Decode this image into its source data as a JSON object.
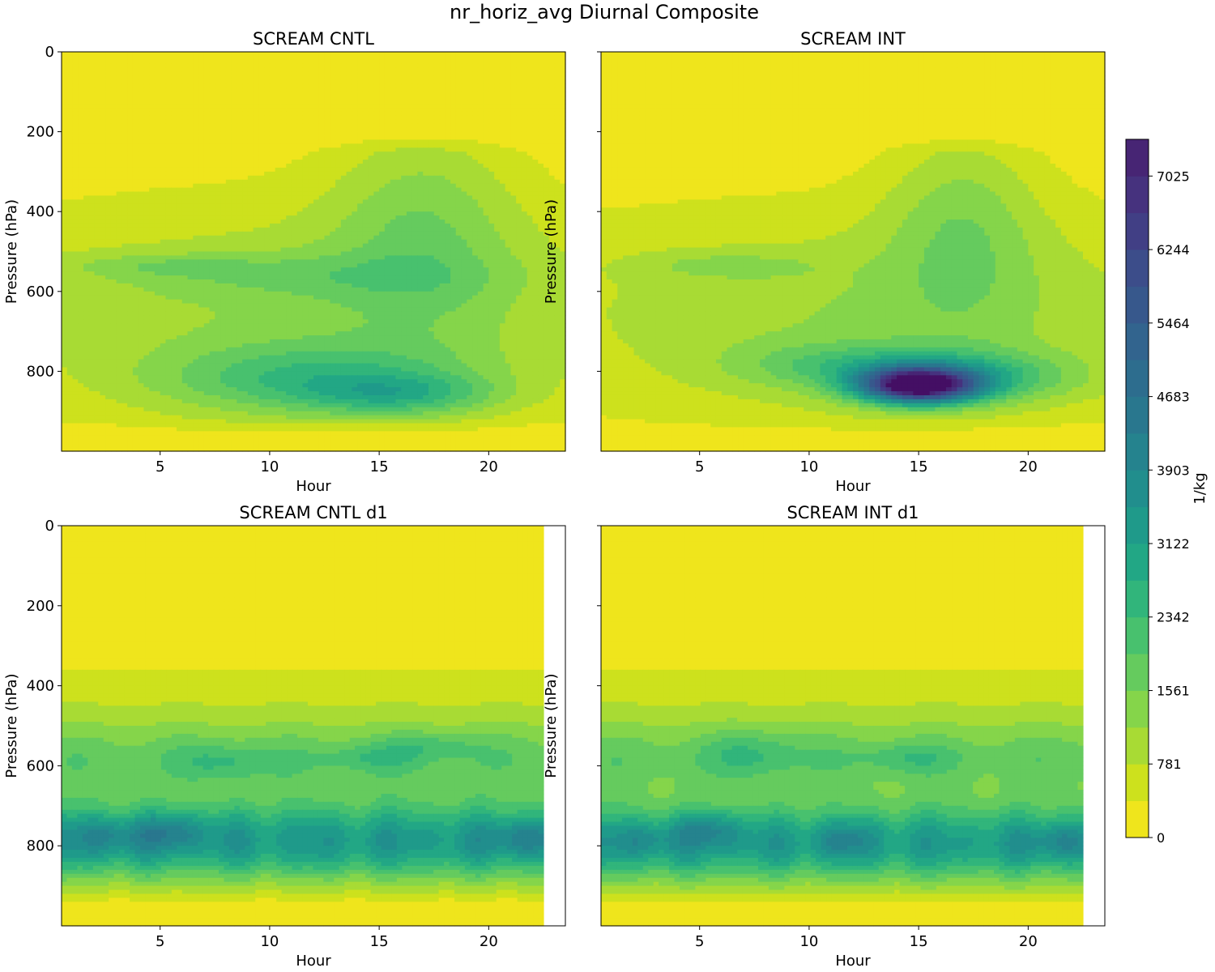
{
  "figure": {
    "title": "nr_horiz_avg Diurnal Composite"
  },
  "colors": {
    "levels": [
      "#efe51c",
      "#cde11d",
      "#a8db34",
      "#85d54a",
      "#65cb5e",
      "#48c16e",
      "#31b57b",
      "#22a785",
      "#1f9a8a",
      "#218e8d",
      "#25838e",
      "#29778e",
      "#2d6d8e",
      "#32648e",
      "#37588c",
      "#3c4d8a",
      "#413f85",
      "#46327e",
      "#472574",
      "#440f64"
    ]
  },
  "chart_data": [
    {
      "type": "contourf",
      "title": "SCREAM CNTL",
      "xlabel": "Hour",
      "ylabel": "Pressure (hPa)",
      "xlim": [
        0.5,
        23.5
      ],
      "ylim": [
        1000,
        0
      ],
      "xticks": [
        5,
        10,
        15,
        20
      ],
      "yticks": [
        0,
        200,
        400,
        600,
        800
      ],
      "show_yticklabels": true,
      "blobs": [
        {
          "x": 12,
          "y": 700,
          "sx": 9,
          "sy": 230,
          "v": 700
        },
        {
          "x": 12,
          "y": 820,
          "sx": 5,
          "sy": 60,
          "v": 1500
        },
        {
          "x": 16,
          "y": 860,
          "sx": 3,
          "sy": 35,
          "v": 1300
        },
        {
          "x": 17,
          "y": 420,
          "sx": 3,
          "sy": 200,
          "v": 1000
        },
        {
          "x": 11,
          "y": 560,
          "sx": 6,
          "sy": 40,
          "v": 600
        },
        {
          "x": 5,
          "y": 535,
          "sx": 3,
          "sy": 20,
          "v": 500
        }
      ]
    },
    {
      "type": "contourf",
      "title": "SCREAM INT",
      "xlabel": "Hour",
      "ylabel": "Pressure (hPa)",
      "xlim": [
        0.5,
        23.5
      ],
      "ylim": [
        1000,
        0
      ],
      "xticks": [
        5,
        10,
        15,
        20
      ],
      "yticks": [
        0,
        200,
        400,
        600,
        800
      ],
      "show_yticklabels": false,
      "blobs": [
        {
          "x": 13,
          "y": 720,
          "sx": 9,
          "sy": 210,
          "v": 700
        },
        {
          "x": 15,
          "y": 835,
          "sx": 1.8,
          "sy": 30,
          "v": 6800
        },
        {
          "x": 17,
          "y": 815,
          "sx": 3.5,
          "sy": 45,
          "v": 1800
        },
        {
          "x": 11.5,
          "y": 785,
          "sx": 3.5,
          "sy": 40,
          "v": 1000
        },
        {
          "x": 17,
          "y": 420,
          "sx": 2.5,
          "sy": 180,
          "v": 1000
        },
        {
          "x": 6,
          "y": 535,
          "sx": 3,
          "sy": 25,
          "v": 550
        }
      ]
    },
    {
      "type": "contourf",
      "title": "SCREAM CNTL d1",
      "xlabel": "Hour",
      "ylabel": "Pressure (hPa)",
      "xlim": [
        0.5,
        23.5
      ],
      "ylim": [
        1000,
        0
      ],
      "xticks": [
        5,
        10,
        15,
        20
      ],
      "yticks": [
        0,
        200,
        400,
        600,
        800
      ],
      "show_yticklabels": true,
      "data_xmax": 22.5,
      "band": {
        "y": 790,
        "sy": 75,
        "v": 3300
      },
      "blobs": [
        {
          "x": 2.5,
          "y": 775,
          "sx": 1,
          "sy": 30,
          "v": 900
        },
        {
          "x": 5.5,
          "y": 765,
          "sx": 1,
          "sy": 30,
          "v": 1100
        },
        {
          "x": 21.5,
          "y": 780,
          "sx": 1,
          "sy": 30,
          "v": 1000
        },
        {
          "x": 8,
          "y": 590,
          "sx": 1.5,
          "sy": 30,
          "v": 700
        },
        {
          "x": 14.5,
          "y": 580,
          "sx": 1.5,
          "sy": 25,
          "v": 600
        },
        {
          "x": 17.5,
          "y": 550,
          "sx": 1.5,
          "sy": 25,
          "v": 600
        }
      ]
    },
    {
      "type": "contourf",
      "title": "SCREAM INT d1",
      "xlabel": "Hour",
      "ylabel": "Pressure (hPa)",
      "xlim": [
        0.5,
        23.5
      ],
      "ylim": [
        1000,
        0
      ],
      "xticks": [
        5,
        10,
        15,
        20
      ],
      "yticks": [
        0,
        200,
        400,
        600,
        800
      ],
      "show_yticklabels": false,
      "data_xmax": 22.5,
      "band": {
        "y": 795,
        "sy": 75,
        "v": 3200
      },
      "blobs": [
        {
          "x": 5.5,
          "y": 760,
          "sx": 1,
          "sy": 30,
          "v": 1100
        },
        {
          "x": 11.5,
          "y": 785,
          "sx": 1,
          "sy": 30,
          "v": 800
        },
        {
          "x": 2.5,
          "y": 785,
          "sx": 1,
          "sy": 30,
          "v": 700
        },
        {
          "x": 21.5,
          "y": 790,
          "sx": 1,
          "sy": 30,
          "v": 900
        },
        {
          "x": 7.5,
          "y": 570,
          "sx": 1.5,
          "sy": 40,
          "v": 700
        },
        {
          "x": 14.5,
          "y": 580,
          "sx": 1.5,
          "sy": 25,
          "v": 600
        }
      ]
    }
  ],
  "colorbar": {
    "label": "1/kg",
    "vmin": 0,
    "vmax": 7415,
    "nlevels": 19,
    "ticks": [
      0,
      781,
      1561,
      2342,
      3122,
      3903,
      4683,
      5464,
      6244,
      7025
    ]
  }
}
